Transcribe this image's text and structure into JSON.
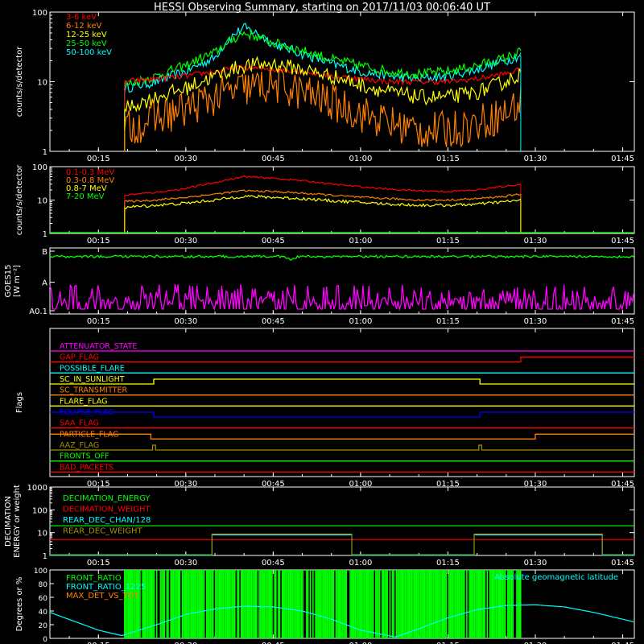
{
  "title": "HESSI Observing Summary, starting on 2017/11/03 00:06:40 UT",
  "colors": {
    "red": "#ff0000",
    "orange": "#ff8000",
    "yellow": "#ffff00",
    "green": "#00ff00",
    "cyan": "#00ffff",
    "magenta": "#ff00ff",
    "blue": "#0000ff",
    "olive": "#a09000",
    "white": "#ffffff"
  },
  "time_axis": {
    "ticks": [
      "00:15",
      "00:30",
      "00:45",
      "01:00",
      "01:15",
      "01:30",
      "01:45"
    ],
    "tick_minutes": [
      15,
      30,
      45,
      60,
      75,
      90,
      105
    ],
    "range_minutes": [
      6.67,
      107.0
    ]
  },
  "chart_data": [
    {
      "id": "lo_energy",
      "type": "line",
      "ylabel": "counts/s/detector",
      "yscale": "log",
      "ylim": [
        1,
        100
      ],
      "yticks": [
        "1",
        "10",
        "100"
      ],
      "legend": [
        "3-6 keV",
        "6-12 keV",
        "12-25 keV",
        "25-50 keV",
        "50-100 keV"
      ],
      "data_window_minutes": [
        19.5,
        87.5
      ],
      "series": [
        {
          "name": "50-100 keV",
          "color": "#00ffff",
          "x": [
            19.5,
            25,
            30,
            35,
            38,
            40,
            42,
            45,
            50,
            55,
            60,
            65,
            70,
            75,
            80,
            85,
            87.5
          ],
          "y": [
            8,
            10,
            14,
            22,
            45,
            60,
            50,
            35,
            25,
            18,
            14,
            12,
            11,
            12,
            15,
            20,
            24
          ]
        },
        {
          "name": "25-50 keV",
          "color": "#00ff00",
          "x": [
            19.5,
            25,
            30,
            35,
            38,
            40,
            42,
            45,
            50,
            55,
            60,
            65,
            70,
            75,
            80,
            85,
            87.5
          ],
          "y": [
            9,
            12,
            17,
            26,
            40,
            50,
            45,
            36,
            28,
            21,
            17,
            14,
            13,
            14,
            17,
            22,
            27
          ]
        },
        {
          "name": "3-6 keV",
          "color": "#ff0000",
          "x": [
            19.5,
            25,
            30,
            35,
            40,
            45,
            50,
            55,
            60,
            65,
            70,
            75,
            80,
            85,
            87.5
          ],
          "y": [
            10,
            11,
            12,
            14,
            16,
            15,
            14,
            12,
            11,
            10,
            10,
            10,
            11,
            13,
            15
          ]
        },
        {
          "name": "12-25 keV",
          "color": "#ffff00",
          "x": [
            19.5,
            25,
            30,
            35,
            40,
            45,
            50,
            55,
            60,
            65,
            70,
            75,
            80,
            85,
            87.5
          ],
          "y": [
            4,
            6,
            8,
            12,
            17,
            18,
            15,
            12,
            9,
            7,
            6,
            6,
            7,
            10,
            13
          ]
        },
        {
          "name": "6-12 keV",
          "color": "#ff8000",
          "x": [
            19.5,
            25,
            30,
            35,
            40,
            45,
            50,
            55,
            60,
            65,
            70,
            75,
            80,
            85,
            87.5
          ],
          "y": [
            2,
            3,
            4,
            6,
            8,
            9,
            7,
            5,
            3.5,
            2.5,
            2,
            2,
            2.5,
            3.5,
            5
          ]
        }
      ]
    },
    {
      "id": "hi_energy",
      "type": "line",
      "ylabel": "counts/s/detector",
      "yscale": "log",
      "ylim": [
        1,
        100
      ],
      "yticks": [
        "1",
        "10",
        "100"
      ],
      "legend": [
        "0.1-0.3 MeV",
        "0.3-0.8 MeV",
        "0.8-7 MeV",
        "7-20 MeV"
      ],
      "data_window_minutes": [
        19.5,
        87.5
      ],
      "series": [
        {
          "name": "0.1-0.3 MeV",
          "color": "#ff0000",
          "x": [
            19.5,
            25,
            30,
            35,
            40,
            45,
            50,
            55,
            60,
            65,
            70,
            75,
            80,
            85,
            87.5
          ],
          "y": [
            14,
            17,
            22,
            33,
            50,
            45,
            38,
            30,
            25,
            21,
            19,
            18,
            20,
            26,
            30
          ]
        },
        {
          "name": "0.3-0.8 MeV",
          "color": "#ff8000",
          "x": [
            19.5,
            25,
            30,
            35,
            40,
            45,
            50,
            55,
            60,
            65,
            70,
            75,
            80,
            85,
            87.5
          ],
          "y": [
            9,
            10,
            12,
            15,
            19,
            18,
            16,
            14,
            12,
            11,
            10,
            10,
            11,
            13,
            15
          ]
        },
        {
          "name": "0.8-7 MeV",
          "color": "#ffff00",
          "x": [
            19.5,
            25,
            30,
            35,
            40,
            45,
            50,
            55,
            60,
            65,
            70,
            75,
            80,
            85,
            87.5
          ],
          "y": [
            6,
            7,
            8,
            10,
            13,
            12,
            11,
            9.5,
            8.5,
            7.5,
            7,
            7,
            7.5,
            9,
            10
          ]
        },
        {
          "name": "7-20 MeV",
          "color": "#00ff00",
          "x": [
            6.67,
            107.0
          ],
          "y": [
            1,
            1
          ]
        }
      ]
    },
    {
      "id": "goes",
      "type": "line",
      "ylabel": "GOES15 [W m⁻²]",
      "ylabel_lines": [
        "GOES15",
        "[W m⁻²]"
      ],
      "yticks": [
        "A0.1",
        "A",
        "B"
      ],
      "series": [
        {
          "name": "GOES high channel",
          "color": "#00ff00",
          "level": 0.87
        },
        {
          "name": "GOES low channel",
          "color": "#ff00ff",
          "level": 0.17
        }
      ]
    },
    {
      "id": "flags",
      "type": "line",
      "ylabel": "Flags",
      "series": [
        {
          "name": "ATTENUATOR_STATE",
          "color": "#ff00ff",
          "segments": [
            [
              6.67,
              0
            ],
            [
              107,
              0
            ]
          ]
        },
        {
          "name": "GAP_FLAG",
          "color": "#ff0000",
          "segments": [
            [
              6.67,
              0
            ],
            [
              87.5,
              0
            ],
            [
              87.5,
              1
            ],
            [
              107,
              1
            ]
          ]
        },
        {
          "name": "POSSIBLE_FLARE",
          "color": "#00ffff",
          "segments": [
            [
              6.67,
              0
            ],
            [
              107,
              0
            ]
          ]
        },
        {
          "name": "SC_IN_SUNLIGHT",
          "color": "#ffff00",
          "segments": [
            [
              6.67,
              0
            ],
            [
              24.5,
              0
            ],
            [
              24.5,
              1
            ],
            [
              80.5,
              1
            ],
            [
              80.5,
              0
            ],
            [
              107,
              0
            ]
          ]
        },
        {
          "name": "SC_TRANSMITTER",
          "color": "#ff8000",
          "segments": [
            [
              6.67,
              0
            ],
            [
              107,
              0
            ]
          ]
        },
        {
          "name": "FLARE_FLAG",
          "color": "#ffff00",
          "segments": [
            [
              6.67,
              0
            ],
            [
              107,
              0
            ]
          ]
        },
        {
          "name": "ECLIPSE_FLAG",
          "color": "#0000ff",
          "segments": [
            [
              6.67,
              1
            ],
            [
              24.5,
              1
            ],
            [
              24.5,
              0
            ],
            [
              80.5,
              0
            ],
            [
              80.5,
              1
            ],
            [
              107,
              1
            ]
          ]
        },
        {
          "name": "SAA_FLAG",
          "color": "#ff0000",
          "segments": [
            [
              6.67,
              0
            ],
            [
              107,
              0
            ]
          ]
        },
        {
          "name": "PARTICLE_FLAG",
          "color": "#ff8000",
          "segments": [
            [
              6.67,
              1
            ],
            [
              24,
              1
            ],
            [
              24,
              0
            ],
            [
              90,
              0
            ],
            [
              90,
              1
            ],
            [
              107,
              1
            ]
          ]
        },
        {
          "name": "AAZ_FLAG",
          "color": "#a09000",
          "segments": [
            [
              6.67,
              0
            ],
            [
              24.3,
              0
            ],
            [
              24.3,
              1
            ],
            [
              24.8,
              1
            ],
            [
              24.8,
              0
            ],
            [
              80.3,
              0
            ],
            [
              80.3,
              1
            ],
            [
              80.8,
              1
            ],
            [
              80.8,
              0
            ],
            [
              107,
              0
            ]
          ]
        },
        {
          "name": "FRONTS_OFF",
          "color": "#00ff00",
          "segments": [
            [
              6.67,
              0
            ],
            [
              107,
              0
            ]
          ]
        },
        {
          "name": "BAD_PACKETS",
          "color": "#ff0000",
          "segments": [
            [
              6.67,
              0
            ],
            [
              107,
              0
            ]
          ]
        }
      ]
    },
    {
      "id": "decimation",
      "type": "line",
      "ylabel": "DECIMATION ENERGY or weight",
      "ylabel_lines": [
        "DECIMATION",
        "ENERGY or weight"
      ],
      "yscale": "log",
      "ylim": [
        1,
        1000
      ],
      "yticks": [
        "1",
        "10",
        "100",
        "1000"
      ],
      "legend": [
        "DECIMATION_ENERGY",
        "DECIMATION_WEIGHT",
        "REAR_DEC_CHAN/128",
        "REAR_DEC_WEIGHT"
      ],
      "series": [
        {
          "name": "DECIMATION_ENERGY",
          "color": "#00ff00",
          "x": [
            6.67,
            107
          ],
          "y": [
            20,
            20
          ]
        },
        {
          "name": "DECIMATION_WEIGHT",
          "color": "#ff0000",
          "x": [
            6.67,
            107
          ],
          "y": [
            5,
            5
          ]
        },
        {
          "name": "REAR_DEC_CHAN/128",
          "color": "#00ffff",
          "x": [
            6.67,
            34.5,
            34.5,
            58.5,
            58.5,
            79.5,
            79.5,
            101.5,
            101.5,
            107
          ],
          "y": [
            1,
            1,
            8,
            8,
            1,
            1,
            8,
            8,
            1,
            1
          ]
        },
        {
          "name": "REAR_DEC_WEIGHT",
          "color": "#a09000",
          "x": [
            6.67,
            34.5,
            34.5,
            58.5,
            58.5,
            79.5,
            79.5,
            101.5,
            101.5,
            107
          ],
          "y": [
            1,
            1,
            8,
            8,
            1,
            1,
            8,
            8,
            1,
            1
          ]
        }
      ]
    },
    {
      "id": "ratios",
      "type": "line",
      "ylabel": "Degrees or %",
      "ylim": [
        0,
        100
      ],
      "yticks": [
        "0",
        "20",
        "40",
        "60",
        "80",
        "100"
      ],
      "legend": [
        "FRONT_RATIO",
        "FRONT_RATIO_1225",
        "MAX_DET_VS_TOT"
      ],
      "right_label": "Absolute geomagnetic latitude",
      "series": [
        {
          "name": "FRONT_RATIO",
          "color": "#00ff00",
          "x": [
            19.5,
            87.5
          ],
          "y": [
            100,
            100
          ]
        },
        {
          "name": "FRONT_RATIO_1225",
          "color": "#00ffff",
          "x": [
            19.5,
            87.5
          ],
          "y": [
            100,
            100
          ]
        },
        {
          "name": "MAX_DET_VS_TOT",
          "color": "#ff8000",
          "x": [
            19.5,
            87.5
          ],
          "y": [
            100,
            100
          ]
        },
        {
          "name": "Absolute geomagnetic latitude",
          "color": "#00ffff",
          "x": [
            6.67,
            15,
            19,
            25,
            30,
            35,
            40,
            45,
            50,
            55,
            60,
            66,
            70,
            75,
            80,
            85,
            90,
            95,
            100,
            104,
            107
          ],
          "y": [
            38,
            12,
            4,
            20,
            35,
            43,
            47,
            46,
            40,
            28,
            12,
            2,
            14,
            30,
            42,
            48,
            49,
            46,
            38,
            30,
            24
          ]
        }
      ]
    }
  ]
}
